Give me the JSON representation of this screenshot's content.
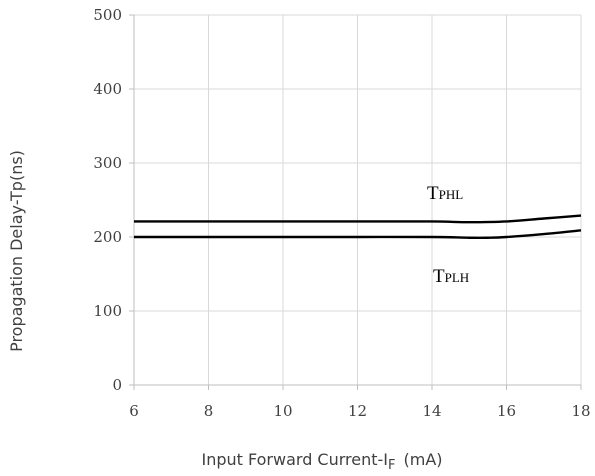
{
  "chart_data": {
    "type": "line",
    "x_range": [
      6,
      18
    ],
    "ylim": [
      0,
      500
    ],
    "x_ticks": [
      "6",
      "8",
      "10",
      "12",
      "14",
      "16",
      "18"
    ],
    "y_ticks": [
      "0",
      "100",
      "200",
      "300",
      "400",
      "500"
    ],
    "ylabel": "Propagation Delay-Tp(ns)",
    "xlabel": {
      "main": "Input Forward Current-I",
      "subscript": "F",
      "unit": "(mA)"
    },
    "grid": true,
    "series": [
      {
        "name": "TPHL",
        "name_main": "T",
        "name_sub": "PHL",
        "x": [
          6,
          8,
          10,
          12,
          14,
          15,
          16,
          17,
          18
        ],
        "y": [
          221,
          221,
          221,
          221,
          221,
          220,
          221,
          225,
          229
        ]
      },
      {
        "name": "TPLH",
        "name_main": "T",
        "name_sub": "PLH",
        "x": [
          6,
          8,
          10,
          12,
          14,
          15,
          15.5,
          16,
          17,
          18
        ],
        "y": [
          200,
          200,
          200,
          200,
          200,
          199,
          199,
          200,
          204,
          209
        ]
      }
    ]
  }
}
